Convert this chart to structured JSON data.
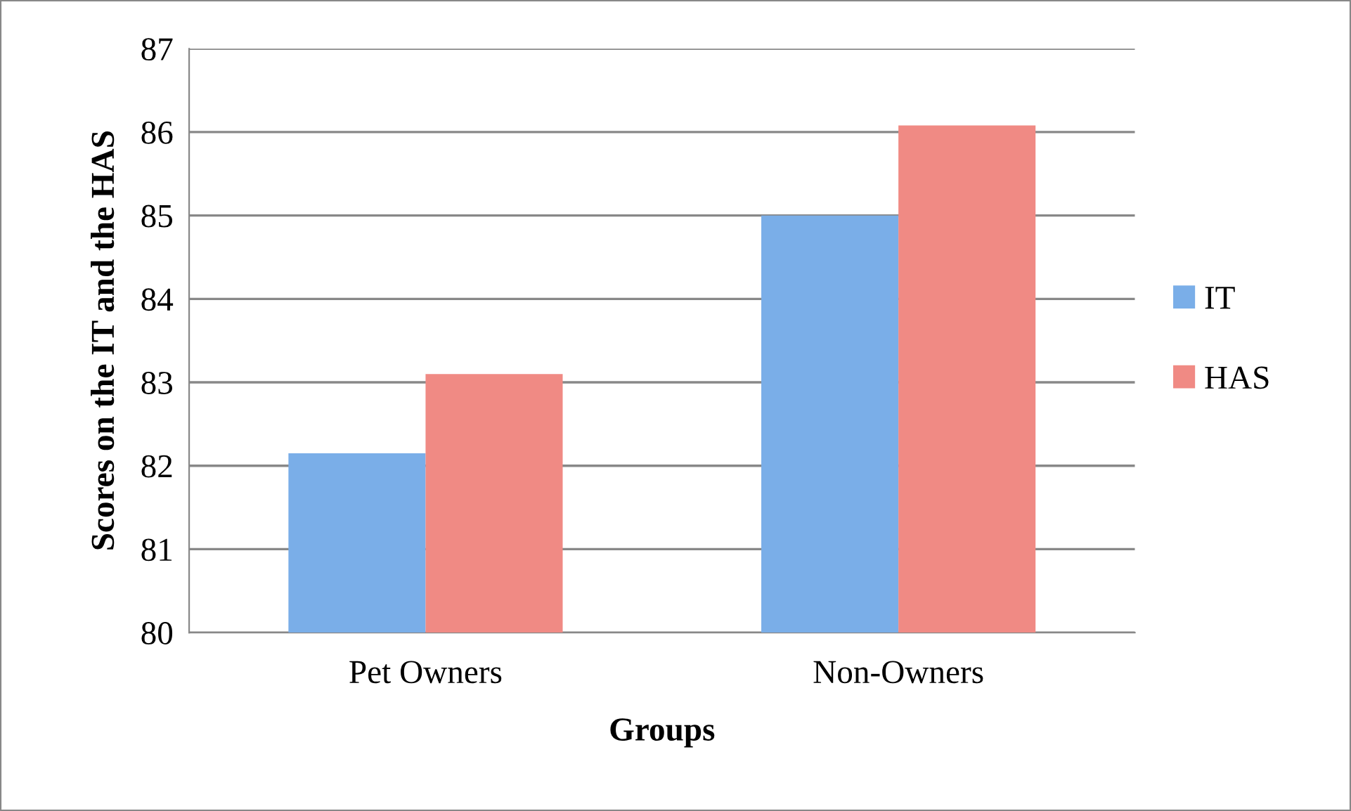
{
  "chart_data": {
    "type": "bar",
    "xlabel": "Groups",
    "ylabel": "Scores on the IT and the HAS",
    "categories": [
      "Pet Owners",
      "Non-Owners"
    ],
    "series": [
      {
        "name": "IT",
        "color": "#7aaee8",
        "values": [
          82.15,
          85.0
        ]
      },
      {
        "name": "HAS",
        "color": "#f08a84",
        "values": [
          83.1,
          86.08
        ]
      }
    ],
    "ylim": [
      80,
      87
    ],
    "yticks": [
      80,
      81,
      82,
      83,
      84,
      85,
      86,
      87
    ],
    "grid": "y",
    "legend": "right"
  }
}
